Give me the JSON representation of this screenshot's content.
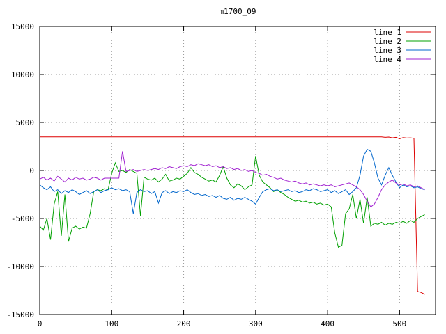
{
  "window": {
    "title": "m1700_09"
  },
  "chart_data": {
    "type": "line",
    "title": "m1700_09",
    "xlabel": "",
    "ylabel": "",
    "xlim": [
      0,
      550
    ],
    "ylim": [
      -15000,
      15000
    ],
    "xticks": [
      0,
      100,
      200,
      300,
      400,
      500
    ],
    "yticks": [
      -15000,
      -10000,
      -5000,
      0,
      5000,
      10000,
      15000
    ],
    "grid": "dotted",
    "legend_position": "top-right",
    "background": "#ffffff",
    "border_color": "#000000",
    "grid_color": "#9a9a9a",
    "x": [
      0,
      5,
      10,
      15,
      20,
      25,
      30,
      35,
      40,
      45,
      50,
      55,
      60,
      65,
      70,
      75,
      80,
      85,
      90,
      95,
      100,
      105,
      110,
      115,
      120,
      125,
      130,
      135,
      140,
      145,
      150,
      155,
      160,
      165,
      170,
      175,
      180,
      185,
      190,
      195,
      200,
      205,
      210,
      215,
      220,
      225,
      230,
      235,
      240,
      245,
      250,
      255,
      260,
      265,
      270,
      275,
      280,
      285,
      290,
      295,
      300,
      305,
      310,
      315,
      320,
      325,
      330,
      335,
      340,
      345,
      350,
      355,
      360,
      365,
      370,
      375,
      380,
      385,
      390,
      395,
      400,
      405,
      410,
      415,
      420,
      425,
      430,
      435,
      440,
      445,
      450,
      455,
      460,
      465,
      470,
      475,
      480,
      485,
      490,
      495,
      500,
      505,
      510,
      515,
      520,
      525,
      530,
      535
    ],
    "series": [
      {
        "name": "line 1",
        "color": "#dd0000",
        "values": [
          3500,
          3500,
          3500,
          3500,
          3500,
          3500,
          3500,
          3500,
          3500,
          3500,
          3500,
          3500,
          3500,
          3500,
          3500,
          3500,
          3500,
          3500,
          3500,
          3500,
          3500,
          3500,
          3500,
          3500,
          3500,
          3500,
          3500,
          3500,
          3500,
          3500,
          3500,
          3500,
          3500,
          3500,
          3500,
          3500,
          3500,
          3500,
          3500,
          3500,
          3500,
          3500,
          3500,
          3500,
          3500,
          3500,
          3500,
          3500,
          3500,
          3500,
          3500,
          3500,
          3500,
          3500,
          3500,
          3500,
          3500,
          3500,
          3500,
          3500,
          3500,
          3500,
          3500,
          3500,
          3500,
          3500,
          3500,
          3500,
          3500,
          3500,
          3500,
          3500,
          3500,
          3500,
          3500,
          3500,
          3500,
          3500,
          3500,
          3500,
          3500,
          3500,
          3500,
          3500,
          3500,
          3500,
          3500,
          3500,
          3500,
          3500,
          3500,
          3500,
          3500,
          3500,
          3500,
          3500,
          3450,
          3480,
          3400,
          3450,
          3300,
          3420,
          3380,
          3400,
          3350,
          -12600,
          -12700,
          -12900
        ]
      },
      {
        "name": "line 2",
        "color": "#00a000",
        "values": [
          -5800,
          -6200,
          -5000,
          -7200,
          -3500,
          -2200,
          -6800,
          -2500,
          -7400,
          -6000,
          -5800,
          -6100,
          -5900,
          -6000,
          -4500,
          -2200,
          -2000,
          -2100,
          -1900,
          -2000,
          -300,
          800,
          -100,
          0,
          -200,
          100,
          -100,
          -300,
          -4700,
          -700,
          -900,
          -1000,
          -800,
          -1200,
          -900,
          -400,
          -1100,
          -1000,
          -800,
          -900,
          -600,
          -300,
          300,
          -200,
          -400,
          -700,
          -900,
          -1100,
          -1000,
          -1200,
          -500,
          400,
          -800,
          -1500,
          -1800,
          -1400,
          -1600,
          -2000,
          -1700,
          -1500,
          1500,
          -500,
          -1200,
          -1500,
          -1800,
          -2200,
          -2000,
          -2300,
          -2500,
          -2800,
          -3000,
          -3200,
          -3100,
          -3300,
          -3200,
          -3400,
          -3300,
          -3500,
          -3400,
          -3600,
          -3500,
          -3800,
          -6500,
          -8000,
          -7800,
          -4500,
          -4000,
          -2500,
          -5000,
          -3000,
          -5500,
          -2800,
          -5800,
          -5500,
          -5600,
          -5400,
          -5700,
          -5500,
          -5600,
          -5400,
          -5500,
          -5300,
          -5500,
          -5200,
          -5400,
          -5000,
          -4800,
          -4600
        ]
      },
      {
        "name": "line 3",
        "color": "#0066cc",
        "values": [
          -1500,
          -1800,
          -2000,
          -1700,
          -2200,
          -2000,
          -2400,
          -2100,
          -2300,
          -2000,
          -2200,
          -2500,
          -2300,
          -2100,
          -2400,
          -2200,
          -2000,
          -2300,
          -2100,
          -2000,
          -1800,
          -2000,
          -1900,
          -2100,
          -2000,
          -2200,
          -4500,
          -2300,
          -2000,
          -2200,
          -2100,
          -2400,
          -2200,
          -3400,
          -2300,
          -2100,
          -2400,
          -2200,
          -2300,
          -2100,
          -2200,
          -2000,
          -2300,
          -2500,
          -2400,
          -2600,
          -2500,
          -2700,
          -2600,
          -2800,
          -2600,
          -2900,
          -3000,
          -2800,
          -3100,
          -2900,
          -3000,
          -2800,
          -3000,
          -3200,
          -3500,
          -2800,
          -2200,
          -2000,
          -1900,
          -2100,
          -2000,
          -2200,
          -2100,
          -2000,
          -2200,
          -2100,
          -2300,
          -2200,
          -2000,
          -2100,
          -1900,
          -2000,
          -2200,
          -2100,
          -2000,
          -2300,
          -2100,
          -2400,
          -2200,
          -2000,
          -2500,
          -2200,
          -1800,
          -500,
          1500,
          2200,
          2000,
          800,
          -800,
          -1500,
          -500,
          300,
          -500,
          -1200,
          -1800,
          -1500,
          -1700,
          -1600,
          -1800,
          -1700,
          -1900,
          -2000
        ]
      },
      {
        "name": "line 4",
        "color": "#a020d0",
        "values": [
          -900,
          -700,
          -1000,
          -800,
          -1100,
          -600,
          -900,
          -1200,
          -800,
          -1000,
          -700,
          -900,
          -800,
          -1000,
          -900,
          -700,
          -800,
          -1000,
          -800,
          -800,
          -800,
          -800,
          -800,
          2000,
          -100,
          0,
          100,
          -100,
          0,
          100,
          0,
          100,
          200,
          100,
          300,
          200,
          400,
          300,
          200,
          400,
          500,
          400,
          600,
          500,
          700,
          600,
          500,
          600,
          400,
          500,
          300,
          400,
          200,
          300,
          100,
          200,
          0,
          100,
          -100,
          0,
          -200,
          -300,
          -500,
          -400,
          -600,
          -700,
          -900,
          -800,
          -1000,
          -1100,
          -1200,
          -1100,
          -1300,
          -1400,
          -1300,
          -1500,
          -1400,
          -1500,
          -1600,
          -1500,
          -1600,
          -1500,
          -1700,
          -1600,
          -1500,
          -1400,
          -1300,
          -1500,
          -1700,
          -2000,
          -2500,
          -3200,
          -3800,
          -3500,
          -2800,
          -2000,
          -1500,
          -1200,
          -1000,
          -1300,
          -1500,
          -1400,
          -1600,
          -1500,
          -1700,
          -1600,
          -1800,
          -2000
        ]
      }
    ]
  }
}
